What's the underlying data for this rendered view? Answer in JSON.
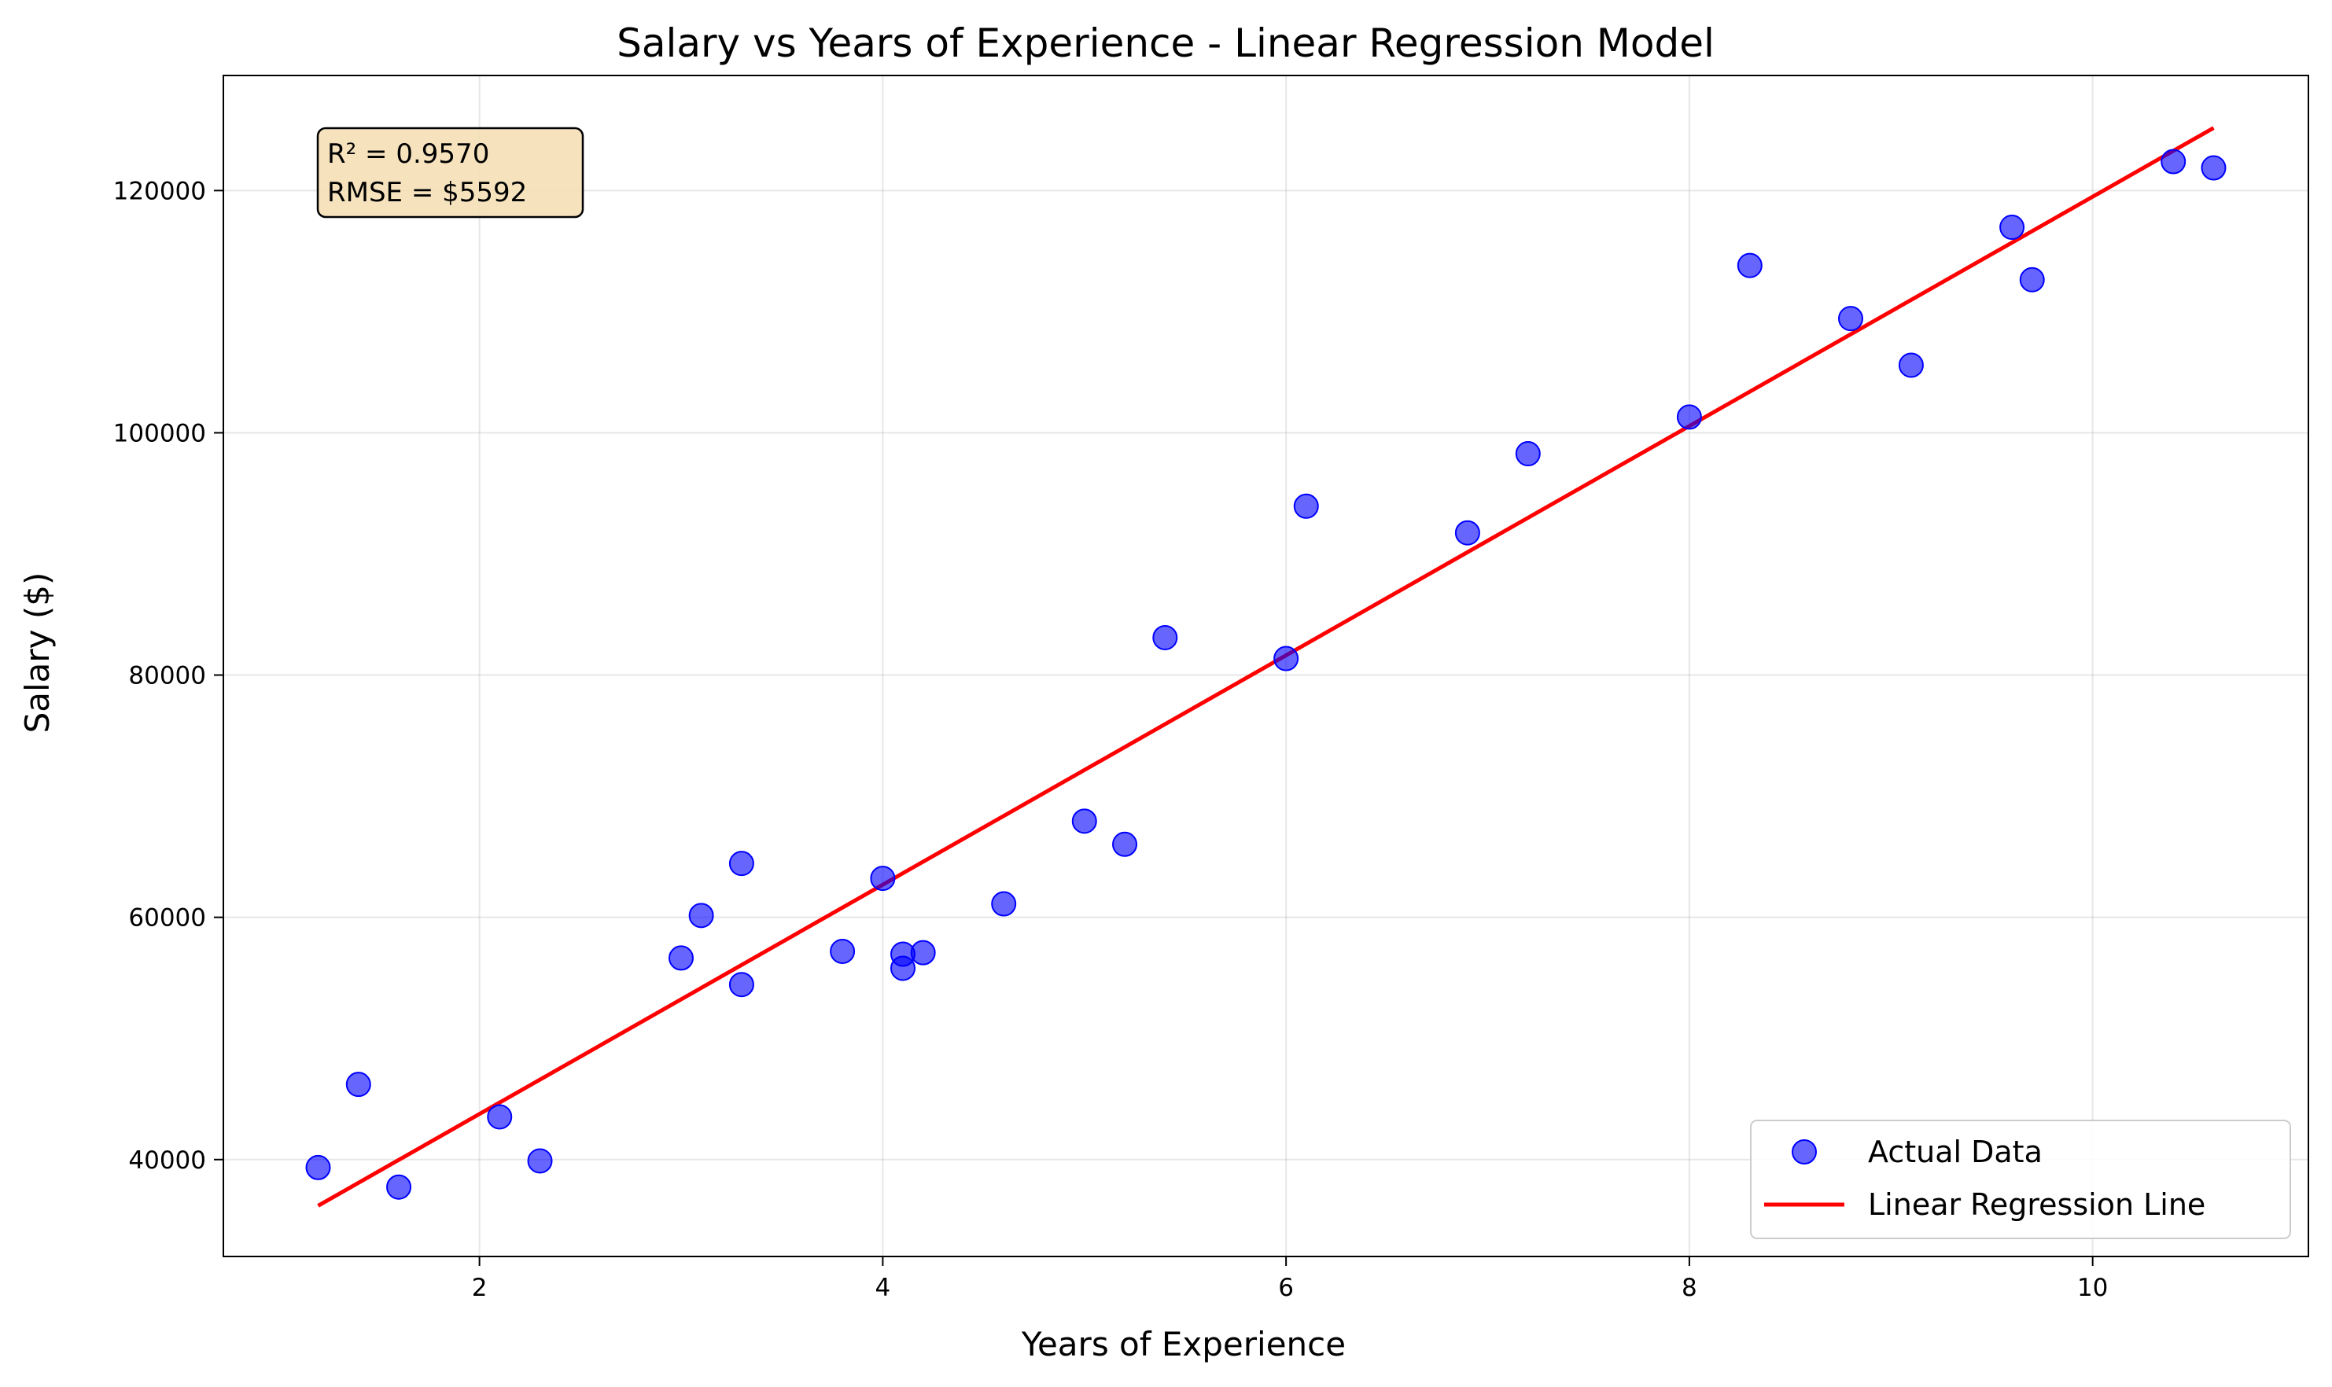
{
  "chart_data": {
    "type": "scatter",
    "title": "Salary vs Years of Experience - Linear Regression Model",
    "xlabel": "Years of Experience",
    "ylabel": "Salary ($)",
    "xlim": [
      0.73,
      11.07
    ],
    "ylim": [
      32000,
      129500
    ],
    "xticks": [
      2,
      4,
      6,
      8,
      10
    ],
    "yticks": [
      40000,
      60000,
      80000,
      100000,
      120000
    ],
    "grid": true,
    "legend_position": "lower-right",
    "series": [
      {
        "name": "Actual Data",
        "kind": "scatter",
        "color": "#0000ff",
        "x": [
          1.2,
          1.4,
          1.6,
          2.1,
          2.3,
          3.0,
          3.1,
          3.3,
          3.3,
          3.8,
          4.0,
          4.1,
          4.1,
          4.2,
          4.6,
          5.0,
          5.2,
          5.4,
          6.0,
          6.1,
          6.9,
          7.2,
          8.0,
          8.3,
          8.8,
          9.1,
          9.6,
          9.7,
          10.4,
          10.6
        ],
        "y": [
          39343,
          46205,
          37731,
          43525,
          39891,
          56642,
          60150,
          54445,
          64445,
          57189,
          63218,
          55794,
          56957,
          57081,
          61111,
          67938,
          66029,
          83088,
          81363,
          93940,
          91738,
          98273,
          101302,
          113812,
          109431,
          105582,
          116969,
          112635,
          122391,
          121872
        ]
      },
      {
        "name": "Linear Regression Line",
        "kind": "line",
        "color": "#ff0000",
        "x": [
          1.2,
          10.6
        ],
        "y": [
          36188,
          125171
        ]
      }
    ],
    "annotation": {
      "lines": [
        "R² = 0.9570",
        "RMSE = $5592"
      ]
    }
  }
}
